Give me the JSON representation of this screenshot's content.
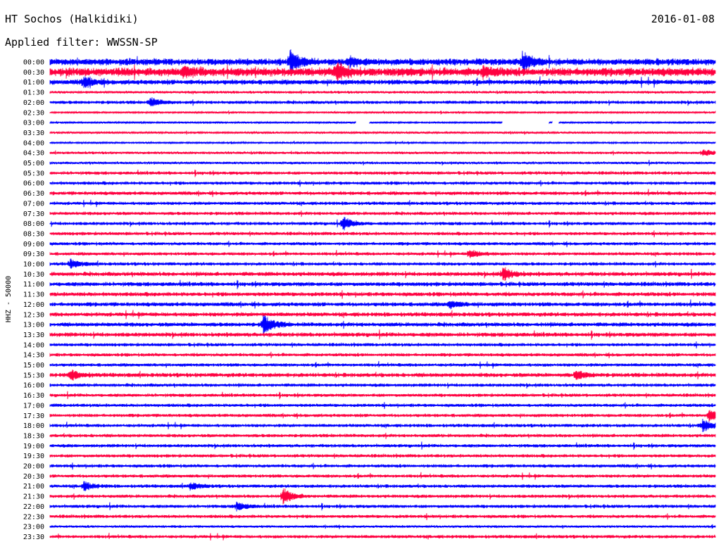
{
  "header": {
    "station": "HT Sochos (Halkidiki)",
    "filter": "Applied filter: WWSSN-SP",
    "date": "2016-01-08"
  },
  "chart_data": {
    "type": "helicorder",
    "ylabel": "HHZ - 50000",
    "colors": {
      "odd": "#0000ff",
      "even": "#ff0040"
    },
    "row_labels": [
      "00:00",
      "00:30",
      "01:00",
      "01:30",
      "02:00",
      "02:30",
      "03:00",
      "03:30",
      "04:00",
      "04:30",
      "05:00",
      "05:30",
      "06:00",
      "06:30",
      "07:00",
      "07:30",
      "08:00",
      "08:30",
      "09:00",
      "09:30",
      "10:00",
      "10:30",
      "11:00",
      "11:30",
      "12:00",
      "12:30",
      "13:00",
      "13:30",
      "14:00",
      "14:30",
      "15:00",
      "15:30",
      "16:00",
      "16:30",
      "17:00",
      "17:30",
      "18:00",
      "18:30",
      "19:00",
      "19:30",
      "20:00",
      "20:30",
      "21:00",
      "21:30",
      "22:00",
      "22:30",
      "23:00",
      "23:30"
    ],
    "row_duration_min": 30,
    "noise_level": [
      4,
      5,
      3,
      1.5,
      2,
      1,
      1,
      1.2,
      1,
      1.5,
      1.5,
      2,
      2,
      2.2,
      2,
      2,
      2,
      2,
      2,
      2,
      2,
      2.5,
      2.5,
      2.5,
      2.5,
      2.5,
      2.5,
      2.5,
      2,
      2,
      2,
      2.5,
      2,
      2,
      2,
      2,
      2,
      2,
      2,
      2,
      2,
      2,
      2,
      2,
      2,
      2,
      1.5,
      2
    ],
    "events": [
      {
        "row": 0,
        "t": 0.36,
        "amp": 14
      },
      {
        "row": 0,
        "t": 0.71,
        "amp": 12
      },
      {
        "row": 0,
        "t": 0.45,
        "amp": 6
      },
      {
        "row": 1,
        "t": 0.2,
        "amp": 6
      },
      {
        "row": 1,
        "t": 0.43,
        "amp": 12
      },
      {
        "row": 1,
        "t": 0.65,
        "amp": 7
      },
      {
        "row": 2,
        "t": 0.05,
        "amp": 8
      },
      {
        "row": 4,
        "t": 0.15,
        "amp": 6
      },
      {
        "row": 9,
        "t": 0.98,
        "amp": 5
      },
      {
        "row": 16,
        "t": 0.44,
        "amp": 9
      },
      {
        "row": 19,
        "t": 0.63,
        "amp": 6
      },
      {
        "row": 20,
        "t": 0.03,
        "amp": 6
      },
      {
        "row": 21,
        "t": 0.68,
        "amp": 10
      },
      {
        "row": 24,
        "t": 0.6,
        "amp": 5
      },
      {
        "row": 26,
        "t": 0.32,
        "amp": 14
      },
      {
        "row": 31,
        "t": 0.03,
        "amp": 7
      },
      {
        "row": 31,
        "t": 0.79,
        "amp": 6
      },
      {
        "row": 35,
        "t": 0.99,
        "amp": 9
      },
      {
        "row": 36,
        "t": 0.98,
        "amp": 9
      },
      {
        "row": 42,
        "t": 0.05,
        "amp": 6
      },
      {
        "row": 42,
        "t": 0.21,
        "amp": 5
      },
      {
        "row": 43,
        "t": 0.35,
        "amp": 11
      },
      {
        "row": 44,
        "t": 0.28,
        "amp": 6
      }
    ],
    "gaps": [
      {
        "row": 6,
        "t0": 0.68,
        "t1": 0.75
      },
      {
        "row": 6,
        "t0": 0.46,
        "t1": 0.48
      },
      {
        "row": 6,
        "t0": 0.755,
        "t1": 0.765
      }
    ]
  }
}
